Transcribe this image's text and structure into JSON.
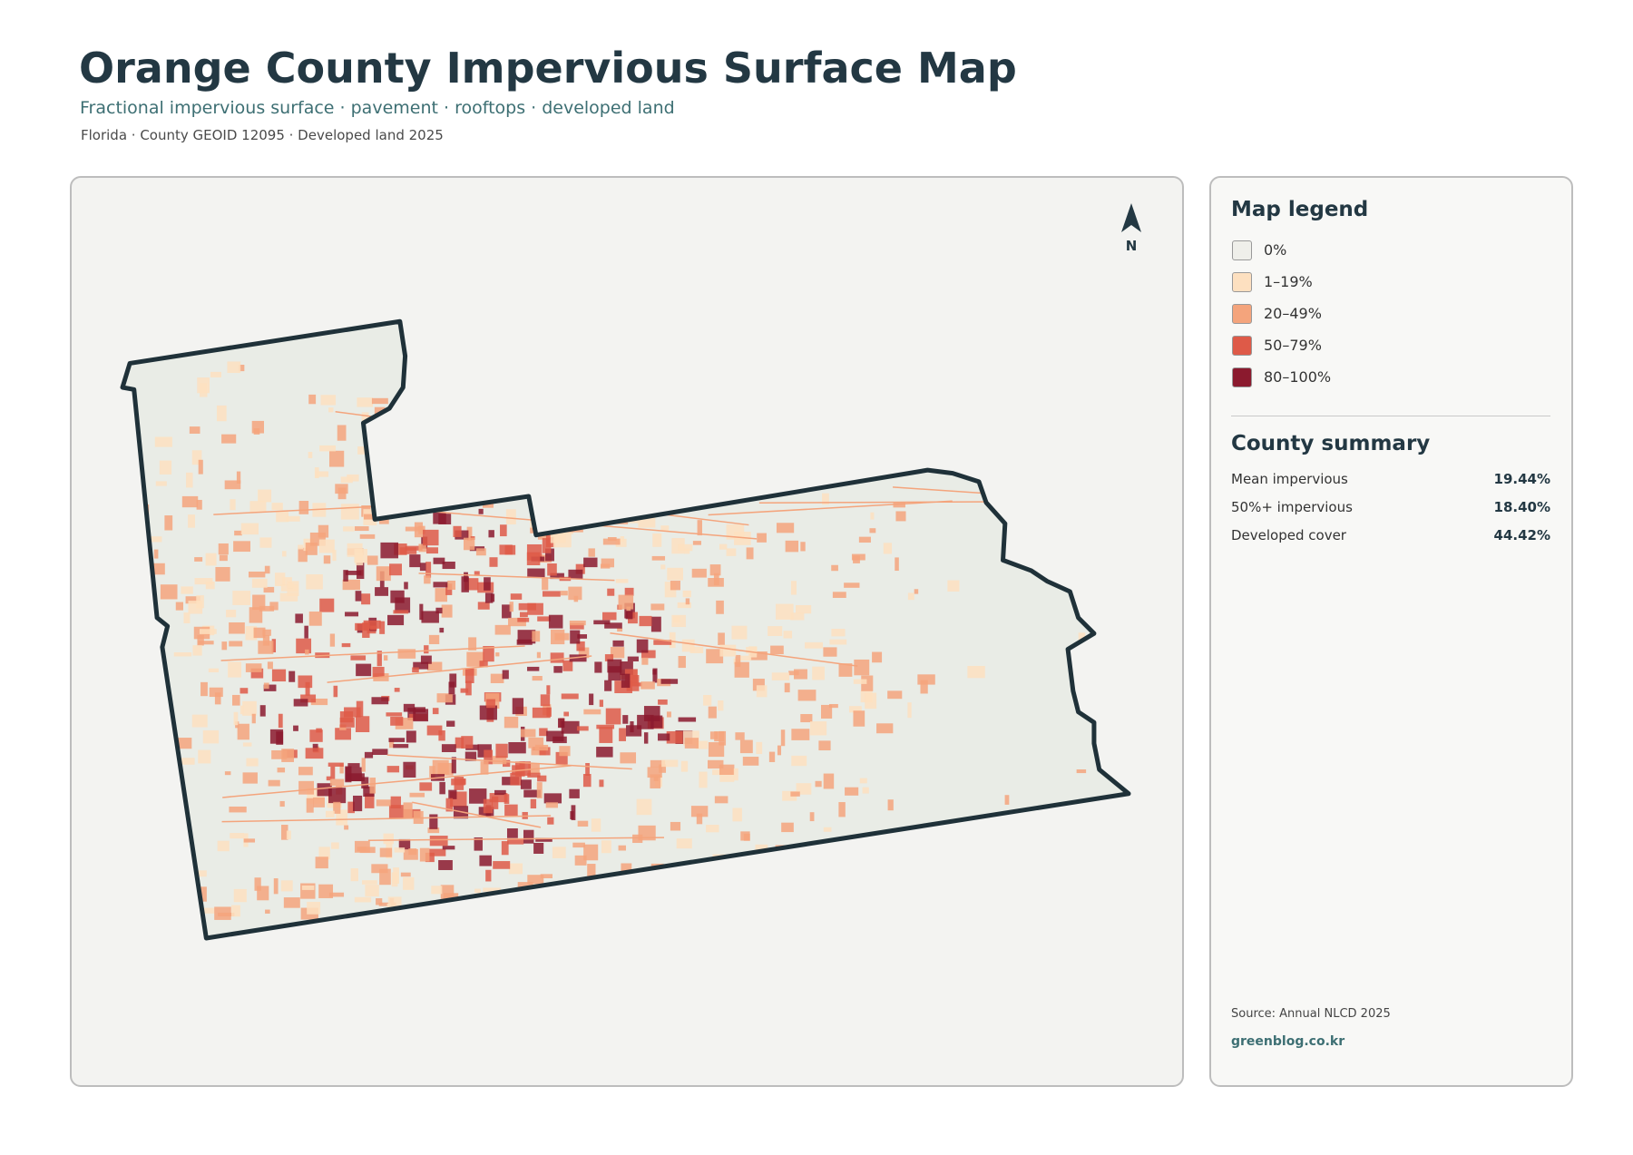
{
  "header": {
    "title": "Orange County Impervious Surface Map",
    "subtitle": "Fractional impervious surface · pavement · rooftops · developed land",
    "meta": "Florida · County GEOID 12095 · Developed land 2025"
  },
  "map": {
    "north_label": "N"
  },
  "legend": {
    "title": "Map legend",
    "items": [
      {
        "label": "0%",
        "color": "#efefea"
      },
      {
        "label": "1–19%",
        "color": "#fde0c0"
      },
      {
        "label": "20–49%",
        "color": "#f4a47c"
      },
      {
        "label": "50–79%",
        "color": "#de5a48"
      },
      {
        "label": "80–100%",
        "color": "#8b1a2e"
      }
    ]
  },
  "summary": {
    "title": "County summary",
    "rows": [
      {
        "label": "Mean impervious",
        "value": "19.44%"
      },
      {
        "label": "50%+ impervious",
        "value": "18.40%"
      },
      {
        "label": "Developed cover",
        "value": "44.42%"
      }
    ]
  },
  "footer": {
    "source": "Source: Annual NLCD 2025",
    "site": "greenblog.co.kr"
  }
}
